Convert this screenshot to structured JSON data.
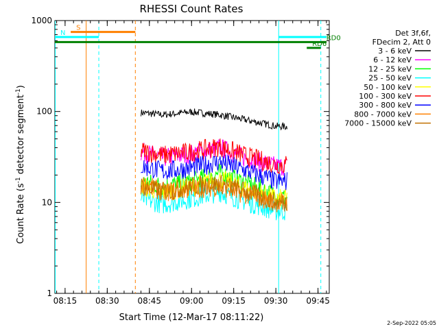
{
  "chart_data": {
    "type": "line",
    "title": "RHESSI Count Rates",
    "xlabel": "Start Time (12-Mar-17 08:11:22)",
    "ylabel_main": "Count Rate (s",
    "ylabel_sup1": "-1",
    "ylabel_mid": " detector segment",
    "ylabel_sup2": "-1",
    "ylabel_end": ")",
    "ylog": true,
    "ylim": [
      1,
      1000
    ],
    "xlim": [
      "08:11:22",
      "09:49:00"
    ],
    "x_ticks": [
      "08:15",
      "08:30",
      "08:45",
      "09:00",
      "09:15",
      "09:30",
      "09:45"
    ],
    "y_ticks": [
      "1",
      "10",
      "100",
      "1000"
    ],
    "legend_header": [
      "Det 3f,6f,",
      "FDecim 2, Att 0"
    ],
    "series": [
      {
        "name": "3 - 6 keV",
        "color": "#000000",
        "x": [
          "08:42",
          "08:50",
          "09:00",
          "09:10",
          "09:20",
          "09:30",
          "09:34"
        ],
        "y": [
          97,
          92,
          99,
          92,
          80,
          69,
          68
        ]
      },
      {
        "name": "6 - 12 keV",
        "color": "#ff00ff",
        "x": [
          "08:42",
          "08:50",
          "09:00",
          "09:10",
          "09:20",
          "09:30",
          "09:34"
        ],
        "y": [
          36,
          31,
          34,
          40,
          30,
          25,
          25
        ]
      },
      {
        "name": "12 - 25 keV",
        "color": "#00ff00",
        "x": [
          "08:42",
          "08:50",
          "09:00",
          "09:10",
          "09:20",
          "09:30",
          "09:34"
        ],
        "y": [
          17,
          15,
          17,
          21,
          16,
          12,
          11
        ]
      },
      {
        "name": "25 - 50 keV",
        "color": "#00ffff",
        "x": [
          "08:42",
          "08:50",
          "09:00",
          "09:10",
          "09:20",
          "09:30",
          "09:34"
        ],
        "y": [
          11,
          9.5,
          11,
          13,
          10,
          8,
          8
        ]
      },
      {
        "name": "50 - 100 keV",
        "color": "#ffff00",
        "x": [
          "08:42",
          "08:50",
          "09:00",
          "09:10",
          "09:20",
          "09:30",
          "09:34"
        ],
        "y": [
          15,
          13,
          15,
          18,
          14,
          11,
          11
        ]
      },
      {
        "name": "100 - 300 keV",
        "color": "#ff0000",
        "x": [
          "08:42",
          "08:50",
          "09:00",
          "09:10",
          "09:20",
          "09:30",
          "09:34"
        ],
        "y": [
          37,
          33,
          36,
          41,
          32,
          26,
          26
        ]
      },
      {
        "name": "300 - 800 keV",
        "color": "#0000ff",
        "x": [
          "08:42",
          "08:50",
          "09:00",
          "09:10",
          "09:20",
          "09:30",
          "09:34"
        ],
        "y": [
          25,
          22,
          24,
          28,
          22,
          17,
          17
        ]
      },
      {
        "name": "800 - 7000 keV",
        "color": "#ff8000",
        "x": [
          "08:42",
          "08:50",
          "09:00",
          "09:10",
          "09:20",
          "09:30",
          "09:34"
        ],
        "y": [
          16,
          13,
          14,
          15,
          12,
          10,
          10
        ]
      },
      {
        "name": "7000 - 15000 keV",
        "color": "#c07000",
        "x": [
          "08:42",
          "08:50",
          "09:00",
          "09:10",
          "09:20",
          "09:30",
          "09:34"
        ],
        "y": [
          15,
          13,
          15,
          16,
          13,
          10,
          10
        ]
      }
    ],
    "vertical_lines": [
      {
        "time": "08:11:30",
        "color": "#00ffff",
        "style": "solid"
      },
      {
        "time": "08:22:30",
        "color": "#ff8000",
        "style": "solid"
      },
      {
        "time": "08:27:00",
        "color": "#00ffff",
        "style": "dashed"
      },
      {
        "time": "08:40:00",
        "color": "#ff8000",
        "style": "dashed"
      },
      {
        "time": "09:31:00",
        "color": "#00ffff",
        "style": "solid"
      },
      {
        "time": "09:46:00",
        "color": "#00ffff",
        "style": "dashed"
      }
    ],
    "flag_bars": [
      {
        "label": "S",
        "color": "#ff8000",
        "x_start": "08:17:00",
        "x_end": "08:40:00",
        "y": 750
      },
      {
        "label": "N",
        "color": "#00ffff",
        "x_start": "08:11:22",
        "x_end": "08:27:00",
        "y": 660
      },
      {
        "label": "",
        "color": "#00ffff",
        "x_start": "09:31:00",
        "x_end": "09:48:00",
        "y": 660
      },
      {
        "label": "",
        "color": "#008000",
        "x_start": "08:11:22",
        "x_end": "09:48:00",
        "y": 580
      },
      {
        "label": "RD0",
        "color": "#008000",
        "x_start": "09:46:00",
        "x_end": "09:48:00",
        "y": 580
      },
      {
        "label": "RD6",
        "color": "#008000",
        "x_start": "09:41:00",
        "x_end": "09:46:00",
        "y": 500
      }
    ],
    "timestamp": "2-Sep-2022 05:05"
  }
}
